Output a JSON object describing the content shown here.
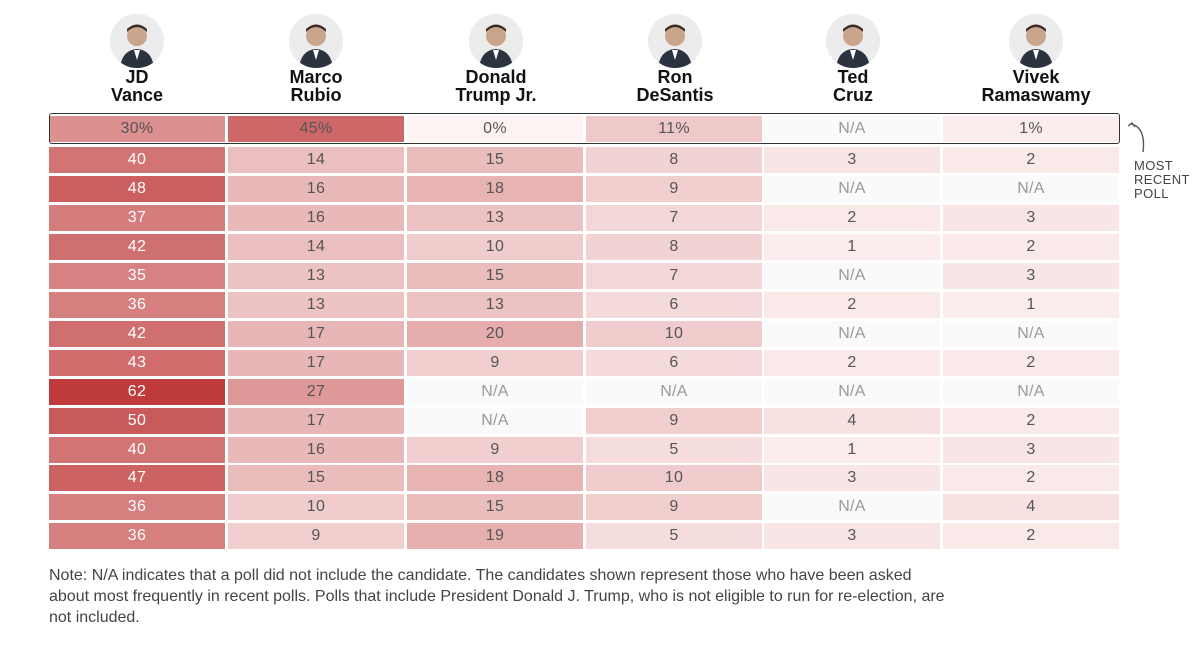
{
  "chart_data": {
    "type": "table",
    "columns": [
      {
        "first": "JD",
        "last": "Vance",
        "avatar_icon": "jd-vance-portrait-icon"
      },
      {
        "first": "Marco",
        "last": "Rubio",
        "avatar_icon": "marco-rubio-portrait-icon"
      },
      {
        "first": "Donald",
        "last": "Trump Jr.",
        "avatar_icon": "donald-trump-jr-portrait-icon"
      },
      {
        "first": "Ron",
        "last": "DeSantis",
        "avatar_icon": "ron-desantis-portrait-icon"
      },
      {
        "first": "Ted",
        "last": "Cruz",
        "avatar_icon": "ted-cruz-portrait-icon"
      },
      {
        "first": "Vivek",
        "last": "Ramaswamy",
        "avatar_icon": "vivek-ramaswamy-portrait-icon"
      }
    ],
    "recent_poll": [
      "30%",
      "45%",
      "0%",
      "11%",
      "N/A",
      "1%"
    ],
    "rows": [
      [
        "40",
        "14",
        "15",
        "8",
        "3",
        "2"
      ],
      [
        "48",
        "16",
        "18",
        "9",
        "N/A",
        "N/A"
      ],
      [
        "37",
        "16",
        "13",
        "7",
        "2",
        "3"
      ],
      [
        "42",
        "14",
        "10",
        "8",
        "1",
        "2"
      ],
      [
        "35",
        "13",
        "15",
        "7",
        "N/A",
        "3"
      ],
      [
        "36",
        "13",
        "13",
        "6",
        "2",
        "1"
      ],
      [
        "42",
        "17",
        "20",
        "10",
        "N/A",
        "N/A"
      ],
      [
        "43",
        "17",
        "9",
        "6",
        "2",
        "2"
      ],
      [
        "62",
        "27",
        "N/A",
        "N/A",
        "N/A",
        "N/A"
      ],
      [
        "50",
        "17",
        "N/A",
        "9",
        "4",
        "2"
      ],
      [
        "40",
        "16",
        "9",
        "5",
        "1",
        "3"
      ],
      [
        "47",
        "15",
        "18",
        "10",
        "3",
        "2"
      ],
      [
        "36",
        "10",
        "15",
        "9",
        "N/A",
        "4"
      ],
      [
        "36",
        "9",
        "19",
        "5",
        "3",
        "2"
      ]
    ],
    "recent_label": [
      "MOST",
      "RECENT",
      "POLL"
    ],
    "colors": {
      "heat_max": "#bf3b3b",
      "heat_min": "#fdf3f3",
      "na_bg": "#fafafa",
      "text_dark": "#ffffff",
      "text_light": "#555555",
      "na_text": "#999999"
    }
  },
  "note": "Note: N/A indicates that a poll did not include the candidate. The candidates shown represent those who have been asked about most frequently in recent polls. Polls that include President Donald J. Trump, who is not eligible to run for re-election, are not included."
}
